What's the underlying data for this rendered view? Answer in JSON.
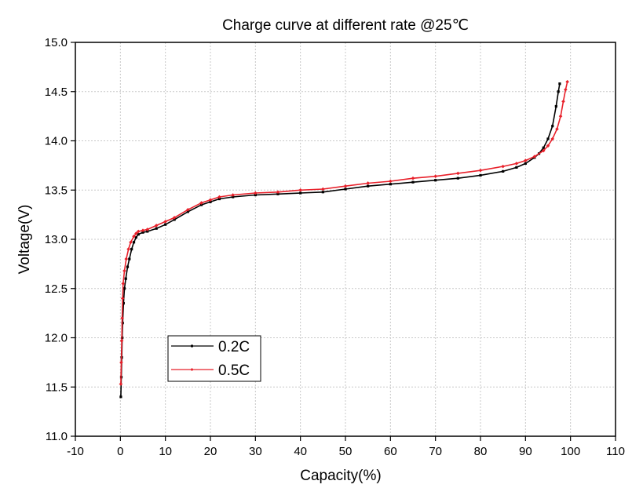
{
  "chart_data": {
    "type": "line",
    "title": "Charge curve at different rate @25℃",
    "xlabel": "Capacity(%)",
    "ylabel": "Voltage(V)",
    "xlim": [
      -10,
      110
    ],
    "ylim": [
      11.0,
      15.0
    ],
    "xticks": [
      -10,
      0,
      10,
      20,
      30,
      40,
      50,
      60,
      70,
      80,
      90,
      100,
      110
    ],
    "yticks": [
      "11.0",
      "11.5",
      "12.0",
      "12.5",
      "13.0",
      "13.5",
      "14.0",
      "14.5",
      "15.0"
    ],
    "grid": true,
    "legend_position": "lower-left",
    "series": [
      {
        "name": "0.2C",
        "color": "#000000",
        "marker": "square",
        "points": [
          [
            0.1,
            11.4
          ],
          [
            0.2,
            11.6
          ],
          [
            0.3,
            11.8
          ],
          [
            0.4,
            12.0
          ],
          [
            0.5,
            12.15
          ],
          [
            0.7,
            12.35
          ],
          [
            0.9,
            12.5
          ],
          [
            1.2,
            12.6
          ],
          [
            1.6,
            12.72
          ],
          [
            2.0,
            12.8
          ],
          [
            2.5,
            12.9
          ],
          [
            3.0,
            12.97
          ],
          [
            3.5,
            13.02
          ],
          [
            4.0,
            13.05
          ],
          [
            5.0,
            13.07
          ],
          [
            6.0,
            13.08
          ],
          [
            8.0,
            13.11
          ],
          [
            10.0,
            13.15
          ],
          [
            12.0,
            13.2
          ],
          [
            15.0,
            13.28
          ],
          [
            18.0,
            13.35
          ],
          [
            20.0,
            13.38
          ],
          [
            22.0,
            13.41
          ],
          [
            25.0,
            13.43
          ],
          [
            30.0,
            13.45
          ],
          [
            35.0,
            13.46
          ],
          [
            40.0,
            13.47
          ],
          [
            45.0,
            13.48
          ],
          [
            50.0,
            13.51
          ],
          [
            55.0,
            13.54
          ],
          [
            60.0,
            13.56
          ],
          [
            65.0,
            13.58
          ],
          [
            70.0,
            13.6
          ],
          [
            75.0,
            13.62
          ],
          [
            80.0,
            13.65
          ],
          [
            85.0,
            13.69
          ],
          [
            88.0,
            13.73
          ],
          [
            90.0,
            13.77
          ],
          [
            92.0,
            13.83
          ],
          [
            93.0,
            13.87
          ],
          [
            94.0,
            13.93
          ],
          [
            95.0,
            14.02
          ],
          [
            96.0,
            14.15
          ],
          [
            96.8,
            14.35
          ],
          [
            97.3,
            14.5
          ],
          [
            97.6,
            14.58
          ]
        ]
      },
      {
        "name": "0.5C",
        "color": "#e8202a",
        "marker": "diamond",
        "points": [
          [
            0.1,
            11.53
          ],
          [
            0.2,
            11.75
          ],
          [
            0.3,
            11.97
          ],
          [
            0.4,
            12.2
          ],
          [
            0.5,
            12.4
          ],
          [
            0.6,
            12.55
          ],
          [
            0.9,
            12.68
          ],
          [
            1.3,
            12.8
          ],
          [
            1.8,
            12.9
          ],
          [
            2.3,
            12.97
          ],
          [
            3.0,
            13.03
          ],
          [
            3.5,
            13.06
          ],
          [
            4.0,
            13.08
          ],
          [
            5.0,
            13.09
          ],
          [
            6.0,
            13.1
          ],
          [
            8.0,
            13.14
          ],
          [
            10.0,
            13.18
          ],
          [
            12.0,
            13.22
          ],
          [
            15.0,
            13.3
          ],
          [
            18.0,
            13.37
          ],
          [
            20.0,
            13.4
          ],
          [
            22.0,
            13.43
          ],
          [
            25.0,
            13.45
          ],
          [
            30.0,
            13.47
          ],
          [
            35.0,
            13.48
          ],
          [
            40.0,
            13.5
          ],
          [
            45.0,
            13.51
          ],
          [
            50.0,
            13.54
          ],
          [
            55.0,
            13.57
          ],
          [
            60.0,
            13.59
          ],
          [
            65.0,
            13.62
          ],
          [
            70.0,
            13.64
          ],
          [
            75.0,
            13.67
          ],
          [
            80.0,
            13.7
          ],
          [
            85.0,
            13.74
          ],
          [
            88.0,
            13.77
          ],
          [
            90.0,
            13.8
          ],
          [
            92.0,
            13.84
          ],
          [
            94.0,
            13.9
          ],
          [
            95.0,
            13.95
          ],
          [
            96.0,
            14.02
          ],
          [
            97.0,
            14.12
          ],
          [
            97.8,
            14.25
          ],
          [
            98.4,
            14.4
          ],
          [
            98.9,
            14.52
          ],
          [
            99.3,
            14.6
          ]
        ]
      }
    ]
  }
}
